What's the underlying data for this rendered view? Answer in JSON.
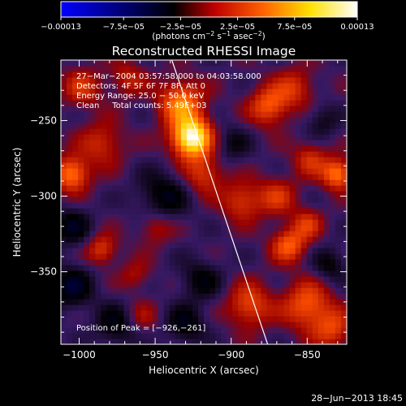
{
  "chart_data": {
    "type": "heatmap",
    "title": "Reconstructed RHESSI Image",
    "xlabel": "Heliocentric X (arcsec)",
    "ylabel": "Heliocentric Y (arcsec)",
    "xlim": [
      -1012,
      -824
    ],
    "ylim": [
      -398,
      -210
    ],
    "x_ticks": [
      {
        "value": -1000,
        "label": "−1000"
      },
      {
        "value": -950,
        "label": "−950"
      },
      {
        "value": -900,
        "label": "−900"
      },
      {
        "value": -850,
        "label": "−850"
      }
    ],
    "y_ticks": [
      {
        "value": -250,
        "label": "−250"
      },
      {
        "value": -300,
        "label": "−300"
      },
      {
        "value": -350,
        "label": "−350"
      }
    ],
    "colorbar": {
      "min": -0.00013,
      "max": 0.00013,
      "unit_label_pre": "(photons cm",
      "unit_sup1": "−2",
      "unit_label_mid": " s",
      "unit_sup2": "−1",
      "unit_label_post": " asec",
      "unit_sup3": "−2",
      "unit_close": ")",
      "ticks": [
        {
          "value": -0.00013,
          "label": "−0.00013"
        },
        {
          "value": -7.5e-05,
          "label": "−7.5e−05"
        },
        {
          "value": -2.5e-05,
          "label": "−2.5e−05"
        },
        {
          "value": 2.5e-05,
          "label": "2.5e−05"
        },
        {
          "value": 7.5e-05,
          "label": "7.5e−05"
        },
        {
          "value": 0.00013,
          "label": "0.00013"
        }
      ],
      "colors": [
        "#0000ff",
        "#000000",
        "#ff0000",
        "#ffff00",
        "#ffffff"
      ]
    },
    "annotations": [
      "27−Mar−2004 03:57:58.000 to 04:03:58.000",
      "Detectors: 4F 5F 6F 7F 8F, Att 0",
      "Energy Range: 25.0 − 50.0 keV",
      "Clean     Total counts: 5.49E+03"
    ],
    "peak_label": "Position of Peak = [−926,−261]",
    "peak": {
      "x": -926,
      "y": -261,
      "value": 0.00013
    },
    "limb_line": [
      [
        -939,
        -210
      ],
      [
        -876,
        -398
      ]
    ],
    "blobs": [
      {
        "x": -926,
        "y": -261,
        "v": 1.0,
        "r": 9
      },
      {
        "x": -933,
        "y": -238,
        "v": 0.55,
        "r": 10
      },
      {
        "x": -918,
        "y": -285,
        "v": 0.35,
        "r": 9
      },
      {
        "x": -1005,
        "y": -285,
        "v": 0.55,
        "r": 8
      },
      {
        "x": -985,
        "y": -265,
        "v": 0.3,
        "r": 10
      },
      {
        "x": -998,
        "y": -228,
        "v": 0.3,
        "r": 9
      },
      {
        "x": -968,
        "y": -222,
        "v": 0.25,
        "r": 8
      },
      {
        "x": -875,
        "y": -240,
        "v": 0.45,
        "r": 9
      },
      {
        "x": -858,
        "y": -228,
        "v": 0.3,
        "r": 9
      },
      {
        "x": -848,
        "y": -275,
        "v": 0.3,
        "r": 8
      },
      {
        "x": -830,
        "y": -285,
        "v": 0.55,
        "r": 7
      },
      {
        "x": -893,
        "y": -303,
        "v": 0.35,
        "r": 9
      },
      {
        "x": -870,
        "y": -300,
        "v": 0.3,
        "r": 9
      },
      {
        "x": -985,
        "y": -335,
        "v": 0.35,
        "r": 7
      },
      {
        "x": -950,
        "y": -320,
        "v": 0.25,
        "r": 8
      },
      {
        "x": -963,
        "y": -352,
        "v": 0.2,
        "r": 7
      },
      {
        "x": -862,
        "y": -332,
        "v": 0.45,
        "r": 8
      },
      {
        "x": -850,
        "y": -318,
        "v": 0.3,
        "r": 7
      },
      {
        "x": -888,
        "y": -372,
        "v": 0.4,
        "r": 10
      },
      {
        "x": -850,
        "y": -372,
        "v": 0.45,
        "r": 11
      },
      {
        "x": -833,
        "y": -388,
        "v": 0.35,
        "r": 9
      },
      {
        "x": -960,
        "y": -380,
        "v": 0.2,
        "r": 8
      },
      {
        "x": -1005,
        "y": -320,
        "v": -0.3,
        "r": 9
      },
      {
        "x": -945,
        "y": -300,
        "v": -0.3,
        "r": 12
      },
      {
        "x": -1005,
        "y": -360,
        "v": -0.35,
        "r": 10
      },
      {
        "x": -920,
        "y": -355,
        "v": -0.25,
        "r": 10
      },
      {
        "x": -975,
        "y": -385,
        "v": -0.3,
        "r": 10
      },
      {
        "x": -900,
        "y": -265,
        "v": -0.2,
        "r": 9
      },
      {
        "x": -840,
        "y": -250,
        "v": -0.2,
        "r": 8
      },
      {
        "x": -930,
        "y": -385,
        "v": -0.3,
        "r": 9
      },
      {
        "x": -835,
        "y": -345,
        "v": -0.25,
        "r": 8
      }
    ]
  },
  "footer": {
    "date": "28−Jun−2013 18:45"
  }
}
